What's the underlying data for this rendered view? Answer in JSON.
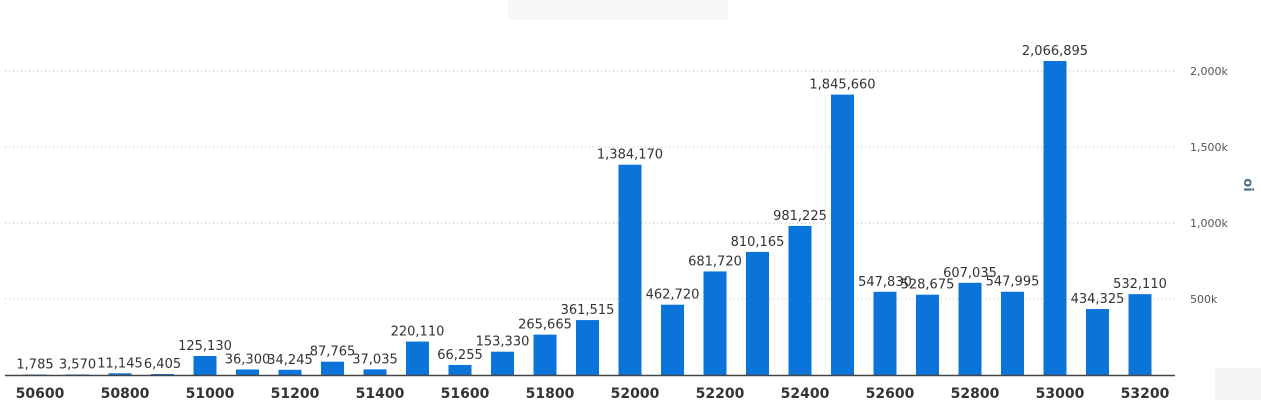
{
  "chart_data": {
    "type": "bar",
    "title": "",
    "xlabel": "",
    "ylabel": "oi",
    "bar_color": "#0a74da",
    "ylim": [
      0,
      2150000
    ],
    "y_ticks": [
      500000,
      1000000,
      1500000,
      2000000
    ],
    "y_tick_labels": [
      "500k",
      "1,000k",
      "1,500k",
      "2,000k"
    ],
    "grid": true,
    "categories": [
      "50600",
      "50700",
      "50800",
      "50900",
      "51000",
      "51100",
      "51200",
      "51300",
      "51400",
      "51500",
      "51600",
      "51700",
      "51800",
      "51900",
      "52000",
      "52100",
      "52200",
      "52300",
      "52400",
      "52500",
      "52600",
      "52700",
      "52800",
      "52900",
      "53000",
      "53100",
      "53200"
    ],
    "x_tick_labels": [
      "50600",
      "50800",
      "51000",
      "51200",
      "51400",
      "51600",
      "51800",
      "52000",
      "52200",
      "52400",
      "52600",
      "52800",
      "53000",
      "53200"
    ],
    "values": [
      1785,
      3570,
      11145,
      6405,
      125130,
      36300,
      34245,
      87765,
      37035,
      220110,
      66255,
      153330,
      265665,
      361515,
      1384170,
      462720,
      681720,
      810165,
      981225,
      1845660,
      547830,
      528675,
      607035,
      547995,
      2066895,
      434325,
      532110
    ],
    "data_labels": [
      "1,785",
      "3,570",
      "11,145",
      "6,405",
      "125,130",
      "36,300",
      "34,245",
      "87,765",
      "37,035",
      "220,110",
      "66,255",
      "153,330",
      "265,665",
      "361,515",
      "1,384,170",
      "462,720",
      "681,720",
      "810,165",
      "981,225",
      "1,845,660",
      "547,830",
      "528,675",
      "607,035",
      "547,995",
      "2,066,895",
      "434,325",
      "532,110"
    ]
  }
}
